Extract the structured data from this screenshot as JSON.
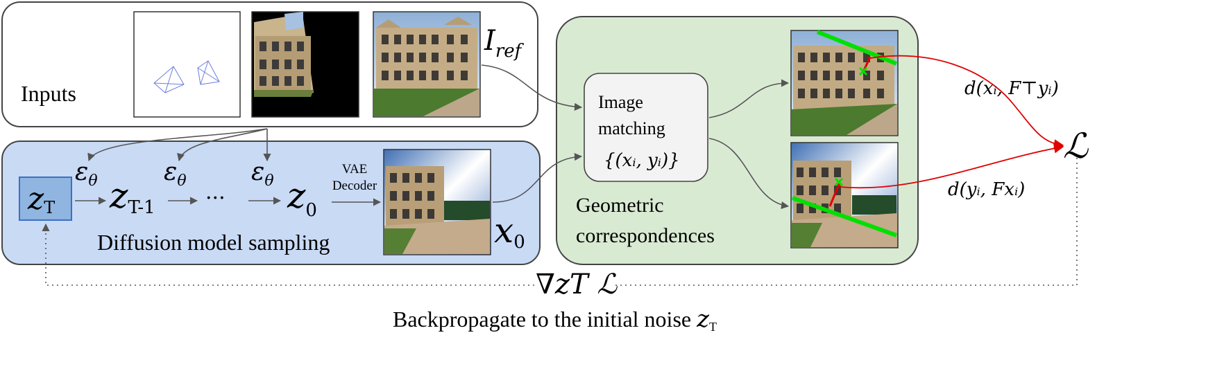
{
  "inputs": {
    "label": "Inputs",
    "ref_label": "I",
    "ref_sub": "ref"
  },
  "diffusion": {
    "label": "Diffusion model sampling",
    "zT": "z",
    "zT_sub": "T",
    "zT1": "z",
    "zT1_sub": "T-1",
    "dots": "···",
    "z0": "z",
    "z0_sub": "0",
    "eps": "ε",
    "eps_sub": "θ",
    "vae_line1": "VAE",
    "vae_line2": "Decoder",
    "x0": "x",
    "x0_sub": "0"
  },
  "geometric": {
    "matching_line1": "Image",
    "matching_line2": "matching",
    "matching_set": "{(xᵢ, yᵢ)}",
    "label_line1": "Geometric",
    "label_line2": "correspondences"
  },
  "loss": {
    "symbol": "ℒ",
    "d1": "d(xᵢ, F⊤yᵢ)",
    "d2": "d(yᵢ, Fxᵢ)"
  },
  "gradient": {
    "label": "∇zT ℒ"
  },
  "caption": {
    "text": "Backpropagate to the initial noise",
    "z": "z",
    "z_sub": "T"
  },
  "icons": [
    "camera-frustum-icon",
    "warped-building-image",
    "reference-building-image",
    "generated-building-image",
    "match-line-image"
  ],
  "colors": {
    "blue_panel": "#c9daf5",
    "green_panel": "#d9ead3",
    "zT_box": "#8fb5e0",
    "epipolar": "#00e000",
    "loss_arrow": "#e60000"
  }
}
